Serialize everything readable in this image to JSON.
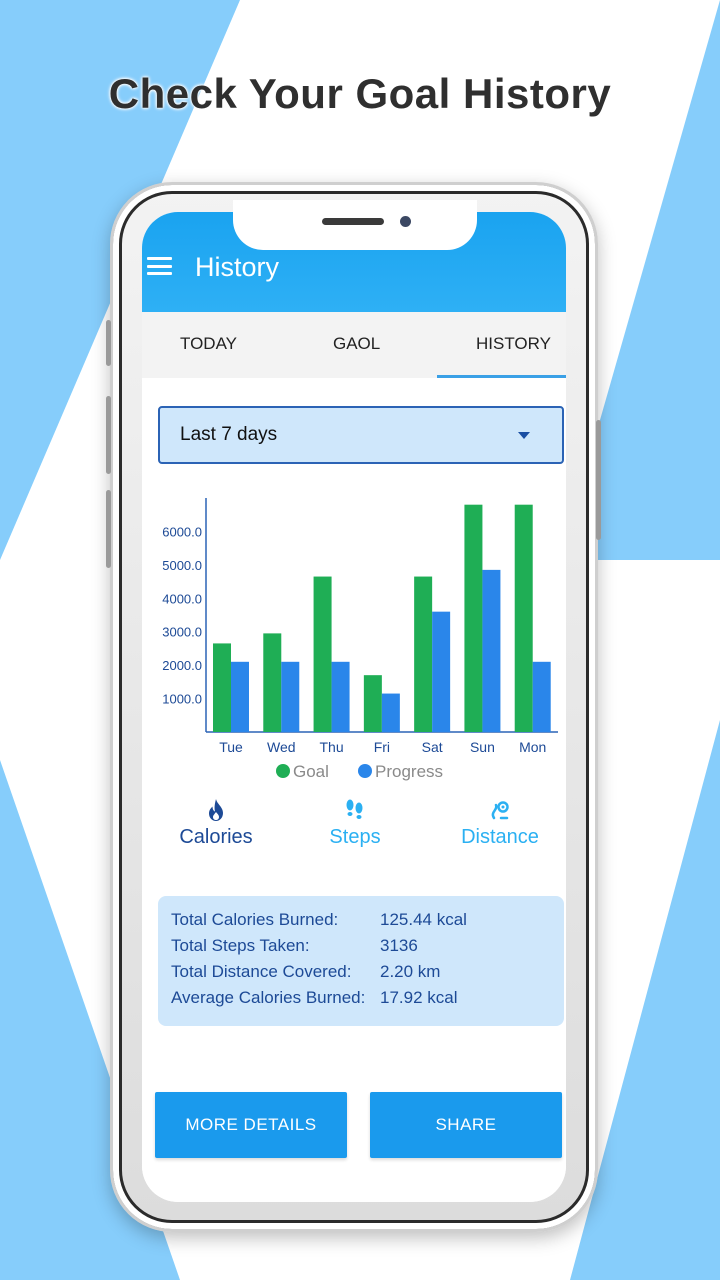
{
  "headline": "Check Your Goal History",
  "app": {
    "title": "History",
    "tabs": [
      {
        "label": "TODAY"
      },
      {
        "label": "GAOL"
      },
      {
        "label": "HISTORY"
      }
    ],
    "selected_tab": "HISTORY",
    "range_select": {
      "value": "Last 7 days"
    }
  },
  "chart_data": {
    "type": "bar",
    "categories": [
      "Tue",
      "Wed",
      "Thu",
      "Fri",
      "Sat",
      "Sun",
      "Mon"
    ],
    "series": [
      {
        "name": "Goal",
        "color": "#1fae55",
        "values": [
          2650,
          2950,
          4650,
          1700,
          4650,
          6800,
          6800
        ]
      },
      {
        "name": "Progress",
        "color": "#2a86ea",
        "values": [
          2100,
          2100,
          2100,
          1150,
          3600,
          4850,
          2100
        ]
      }
    ],
    "y_ticks": [
      "1000.0",
      "2000.0",
      "3000.0",
      "4000.0",
      "5000.0",
      "6000.0"
    ],
    "ylim": [
      0,
      7000
    ],
    "grid": false,
    "legend": "bottom"
  },
  "metrics": [
    {
      "label": "Calories",
      "icon": "flame-icon",
      "active": true
    },
    {
      "label": "Steps",
      "icon": "footsteps-icon",
      "active": false
    },
    {
      "label": "Distance",
      "icon": "route-icon",
      "active": false
    }
  ],
  "summary": [
    {
      "label": "Total Calories Burned:",
      "value": "125.44 kcal"
    },
    {
      "label": "Total Steps Taken:",
      "value": "3136"
    },
    {
      "label": "Total Distance Covered:",
      "value": "2.20 km"
    },
    {
      "label": "Average Calories Burned:",
      "value": "17.92 kcal"
    }
  ],
  "buttons": {
    "more_details": "MORE DETAILS",
    "share": "SHARE"
  },
  "colors": {
    "background_accent": "#86cdfb",
    "app_bar": "#1aa3f0",
    "button": "#1a9aed",
    "active_metric": "#1d4a96",
    "inactive_metric": "#2bb0f2"
  }
}
